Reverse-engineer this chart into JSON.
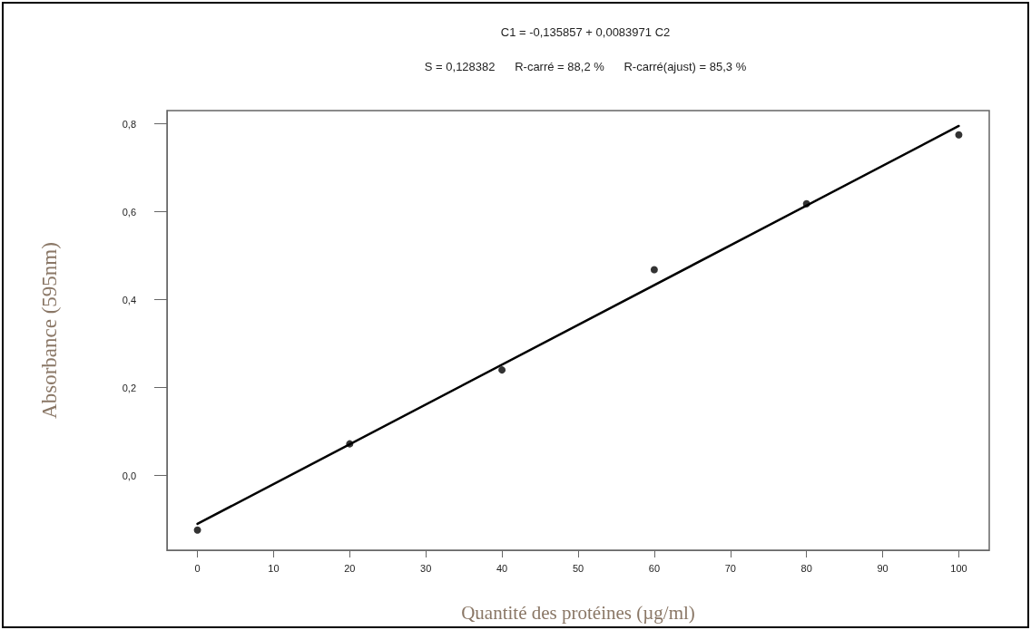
{
  "chart_data": {
    "type": "scatter",
    "title": "C1 = -0,135857 + 0,0083971 C2",
    "subtitle": "S = 0,128382      R-carré = 88,2 %      R-carré(ajust) = 85,3 %",
    "xlabel": "Quantité des protéines (µg/ml)",
    "ylabel": "Absorbance (595nm)",
    "series": [
      {
        "type": "scatter",
        "marker": "circle",
        "color": "#000000",
        "x": [
          0,
          20,
          40,
          60,
          80,
          100
        ],
        "values": [
          -0.124,
          0.072,
          0.24,
          0.468,
          0.618,
          0.775
        ]
      },
      {
        "type": "line",
        "marker": "none",
        "line_style": "solid",
        "color": "#000000",
        "x": [
          0,
          100
        ],
        "values": [
          -0.11,
          0.795
        ]
      }
    ],
    "xlim": [
      -4,
      104
    ],
    "xticks": [
      0,
      10,
      20,
      30,
      40,
      50,
      60,
      70,
      80,
      90,
      100
    ],
    "ylim": [
      -0.17,
      0.83
    ],
    "yticks": [
      {
        "value": 0,
        "label": "0,0"
      },
      {
        "value": 0.2,
        "label": "0,2"
      },
      {
        "value": 0.4,
        "label": "0,4"
      },
      {
        "value": 0.6,
        "label": "0,6"
      },
      {
        "value": 0.8,
        "label": "0,8"
      }
    ],
    "grid": false
  }
}
